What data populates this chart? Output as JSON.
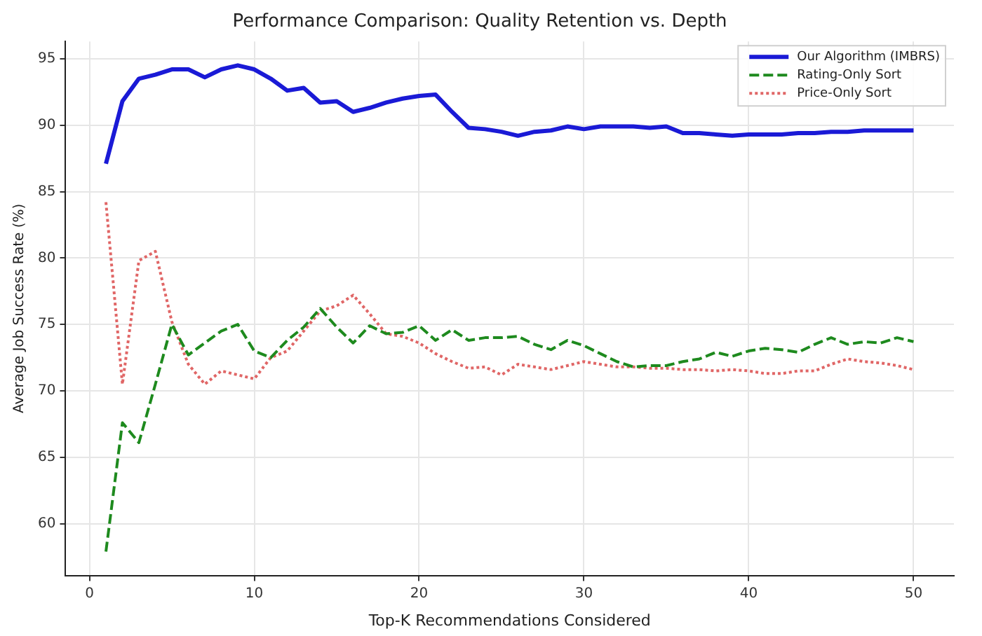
{
  "chart_data": {
    "type": "line",
    "title": "Performance Comparison: Quality Retention vs. Depth",
    "xlabel": "Top-K Recommendations Considered",
    "ylabel": "Average Job Success Rate (%)",
    "x": [
      1,
      2,
      3,
      4,
      5,
      6,
      7,
      8,
      9,
      10,
      11,
      12,
      13,
      14,
      15,
      16,
      17,
      18,
      19,
      20,
      21,
      22,
      23,
      24,
      25,
      26,
      27,
      28,
      29,
      30,
      31,
      32,
      33,
      34,
      35,
      36,
      37,
      38,
      39,
      40,
      41,
      42,
      43,
      44,
      45,
      46,
      47,
      48,
      49,
      50
    ],
    "series": [
      {
        "name": "Our Algorithm (IMBRS)",
        "color": "#1a1ad6",
        "line_style": "solid",
        "values": [
          87.1,
          91.8,
          93.5,
          93.8,
          94.2,
          94.2,
          93.6,
          94.2,
          94.5,
          94.2,
          93.5,
          92.6,
          92.8,
          91.7,
          91.8,
          91.0,
          91.3,
          91.7,
          92.0,
          92.2,
          92.3,
          91.0,
          89.8,
          89.7,
          89.5,
          89.2,
          89.5,
          89.6,
          89.9,
          89.7,
          89.9,
          89.9,
          89.9,
          89.8,
          89.9,
          89.4,
          89.4,
          89.3,
          89.2,
          89.3,
          89.3,
          89.3,
          89.4,
          89.4,
          89.5,
          89.5,
          89.6,
          89.6,
          89.6,
          89.6
        ]
      },
      {
        "name": "Rating-Only Sort",
        "color": "#1e8a1e",
        "line_style": "dashed",
        "values": [
          57.9,
          67.6,
          66.1,
          70.5,
          75.0,
          72.7,
          73.6,
          74.5,
          75.0,
          73.0,
          72.5,
          73.8,
          74.8,
          76.2,
          74.8,
          73.6,
          74.9,
          74.3,
          74.4,
          74.9,
          73.8,
          74.6,
          73.8,
          74.0,
          74.0,
          74.1,
          73.5,
          73.1,
          73.8,
          73.4,
          72.8,
          72.2,
          71.8,
          71.9,
          71.9,
          72.2,
          72.4,
          72.9,
          72.6,
          73.0,
          73.2,
          73.1,
          72.9,
          73.5,
          74.0,
          73.5,
          73.7,
          73.6,
          74.0,
          73.7
        ]
      },
      {
        "name": "Price-Only Sort",
        "color": "#e06666",
        "line_style": "dotted",
        "values": [
          84.2,
          70.5,
          79.8,
          80.5,
          75.2,
          72.0,
          70.5,
          71.5,
          71.2,
          70.9,
          72.5,
          73.0,
          74.5,
          76.0,
          76.4,
          77.2,
          75.8,
          74.3,
          74.1,
          73.6,
          72.8,
          72.2,
          71.7,
          71.8,
          71.2,
          72.0,
          71.8,
          71.6,
          71.9,
          72.2,
          72.0,
          71.8,
          71.8,
          71.7,
          71.7,
          71.6,
          71.6,
          71.5,
          71.6,
          71.5,
          71.3,
          71.3,
          71.5,
          71.5,
          72.0,
          72.4,
          72.2,
          72.1,
          71.9,
          71.6
        ]
      }
    ],
    "xlim": [
      -1.45,
      52.45
    ],
    "xticks": [
      0,
      10,
      20,
      30,
      40,
      50
    ],
    "ylim": [
      56.1,
      96.3
    ],
    "yticks": [
      60,
      65,
      70,
      75,
      80,
      85,
      90,
      95
    ],
    "grid": true,
    "legend": "top right"
  }
}
